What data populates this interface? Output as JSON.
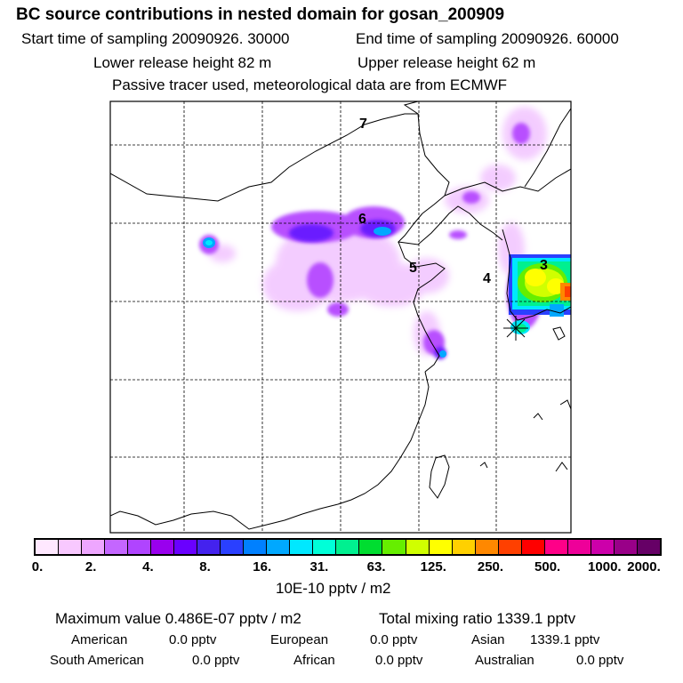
{
  "header": {
    "title": "BC  source contributions in nested domain for gosan_200909",
    "start_time": "Start time of sampling 20090926. 30000",
    "end_time": "End time of sampling 20090926. 60000",
    "lower_height": "Lower release height   82 m",
    "upper_height": "Upper release height   62 m",
    "tracer_note": "Passive tracer used, meteorological data are from ECMWF"
  },
  "map": {
    "station_labels": [
      "7",
      "6",
      "5",
      "4",
      "3"
    ]
  },
  "legend": {
    "colors": [
      "#ffe8ff",
      "#f8c8ff",
      "#eea6ff",
      "#c466ff",
      "#b044ff",
      "#9900ee",
      "#6a00ff",
      "#4422ee",
      "#2a40ff",
      "#0080ff",
      "#00a8ff",
      "#00e8ff",
      "#00ffd8",
      "#00f090",
      "#00dd30",
      "#66ee00",
      "#d0ff00",
      "#ffff00",
      "#ffd000",
      "#ff8800",
      "#ff4000",
      "#ff0000",
      "#ff0088",
      "#ee0099",
      "#cc00aa",
      "#990088",
      "#660066"
    ],
    "ticks": [
      "0.",
      "2.",
      "4.",
      "8.",
      "16.",
      "31.",
      "63.",
      "125.",
      "250.",
      "500.",
      "1000.",
      "2000."
    ],
    "unit": "10E-10 pptv / m2"
  },
  "summary": {
    "max_value": "Maximum value  0.486E-07 pptv / m2",
    "total_mixing": "Total mixing ratio     1339.1 pptv"
  },
  "regions": [
    {
      "name": "American",
      "value": "0.0 pptv"
    },
    {
      "name": "European",
      "value": "0.0 pptv"
    },
    {
      "name": "Asian",
      "value": "1339.1 pptv"
    },
    {
      "name": "South American",
      "value": "0.0 pptv"
    },
    {
      "name": "African",
      "value": "0.0 pptv"
    },
    {
      "name": "Australian",
      "value": "0.0 pptv"
    }
  ]
}
